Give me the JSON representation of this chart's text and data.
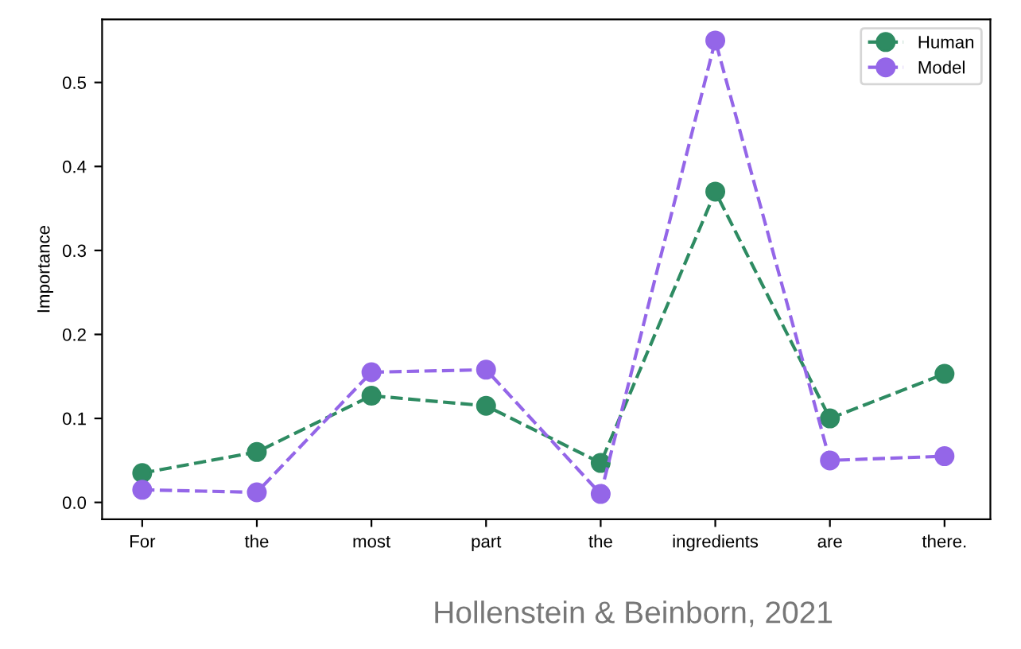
{
  "chart_data": {
    "type": "line",
    "ylabel": "Importance",
    "categories": [
      "For",
      "the",
      "most",
      "part",
      "the",
      "ingredients",
      "are",
      "there."
    ],
    "series": [
      {
        "name": "Human",
        "color": "#2e8b62",
        "values": [
          0.035,
          0.06,
          0.127,
          0.115,
          0.047,
          0.37,
          0.1,
          0.153
        ]
      },
      {
        "name": "Model",
        "color": "#9466e8",
        "values": [
          0.015,
          0.012,
          0.155,
          0.158,
          0.01,
          0.55,
          0.05,
          0.055
        ]
      }
    ],
    "ylim": [
      -0.02,
      0.575
    ],
    "yticks": [
      {
        "value": 0,
        "label": "0.0"
      },
      0.1,
      0.2,
      0.3,
      0.4,
      0.5
    ],
    "marker": "circle",
    "line_style": "dashed",
    "legend": "top right",
    "grid": false,
    "annotations": [
      "Hollenstein & Beinborn, 2021"
    ]
  }
}
